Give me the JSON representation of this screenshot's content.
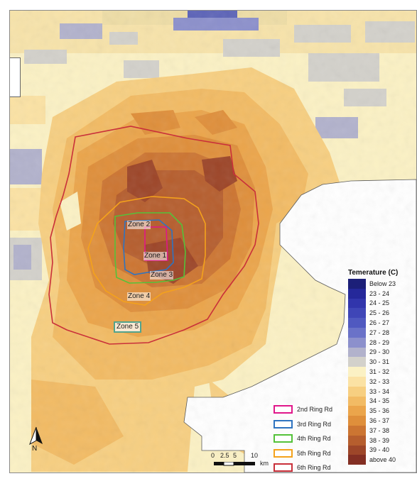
{
  "zones": [
    {
      "label": "Zone 1"
    },
    {
      "label": "Zone 2"
    },
    {
      "label": "Zone 3"
    },
    {
      "label": "Zone 4"
    },
    {
      "label": "Zone 5"
    }
  ],
  "temperature_legend": {
    "title": "Temerature (C)",
    "classes": [
      {
        "label": "Below 23",
        "color": "#1c1f78"
      },
      {
        "label": "23 - 24",
        "color": "#25289a"
      },
      {
        "label": "24 - 25",
        "color": "#3135ac"
      },
      {
        "label": "25 - 26",
        "color": "#3f46b7"
      },
      {
        "label": "26 - 27",
        "color": "#5059c0"
      },
      {
        "label": "27 - 28",
        "color": "#6a72c8"
      },
      {
        "label": "28 - 29",
        "color": "#8c90cc"
      },
      {
        "label": "29 - 30",
        "color": "#b2b2cc"
      },
      {
        "label": "30 - 31",
        "color": "#d3d1cb"
      },
      {
        "label": "31 - 32",
        "color": "#fbf1c4"
      },
      {
        "label": "32 - 33",
        "color": "#fbe2a4"
      },
      {
        "label": "33 - 34",
        "color": "#f7cf81"
      },
      {
        "label": "34 - 35",
        "color": "#f2bb64"
      },
      {
        "label": "35 - 36",
        "color": "#eba54b"
      },
      {
        "label": "36 - 37",
        "color": "#df8f3b"
      },
      {
        "label": "37 - 38",
        "color": "#cc7532"
      },
      {
        "label": "38 - 39",
        "color": "#b65e2e"
      },
      {
        "label": "39 - 40",
        "color": "#9d4629"
      },
      {
        "label": "above 40",
        "color": "#832f23"
      }
    ]
  },
  "ring_legend": [
    {
      "label": "2nd Ring Rd",
      "color": "#e0178a"
    },
    {
      "label": "3rd Ring Rd",
      "color": "#2f74c0"
    },
    {
      "label": "4th Ring Rd",
      "color": "#54c23a"
    },
    {
      "label": "5th Ring Rd",
      "color": "#f4a21c"
    },
    {
      "label": "6th Ring Rd",
      "color": "#c9303a"
    }
  ],
  "north_arrow": {
    "label": "N",
    "icon": "north-arrow-icon"
  },
  "scale_bar": {
    "ticks": [
      "0",
      "2.5",
      "5",
      "10"
    ],
    "unit": "km"
  }
}
